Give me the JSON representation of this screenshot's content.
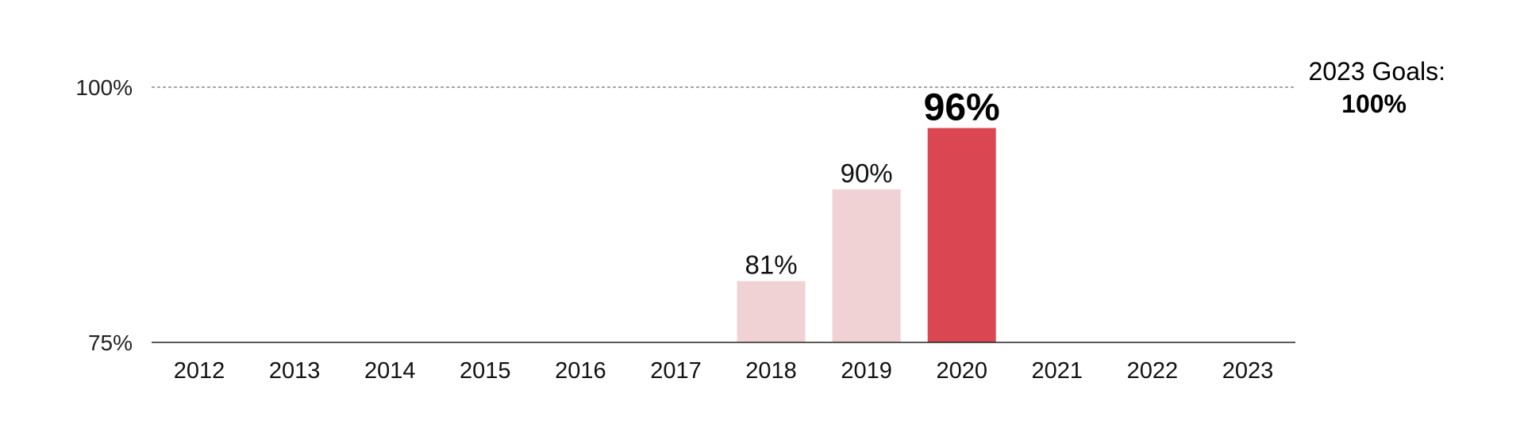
{
  "chart_data": {
    "type": "bar",
    "categories": [
      "2012",
      "2013",
      "2014",
      "2015",
      "2016",
      "2017",
      "2018",
      "2019",
      "2020",
      "2021",
      "2022",
      "2023"
    ],
    "values": [
      null,
      null,
      null,
      null,
      null,
      null,
      81,
      90,
      96,
      null,
      null,
      null
    ],
    "value_labels": [
      "",
      "",
      "",
      "",
      "",
      "",
      "81%",
      "90%",
      "96%",
      "",
      "",
      ""
    ],
    "highlight_category": "2020",
    "ylim": [
      75,
      100
    ],
    "y_ticks": [
      75,
      100
    ],
    "y_tick_labels": [
      "75%",
      "100%"
    ],
    "goal_line": {
      "value": 100,
      "title": "2023 Goals:",
      "value_label": "100%"
    },
    "grid": false,
    "legend": "none",
    "colors": {
      "bar": "#f0d2d5",
      "highlight": "#da4752",
      "axis": "#222222",
      "goal_line": "#888888"
    }
  }
}
